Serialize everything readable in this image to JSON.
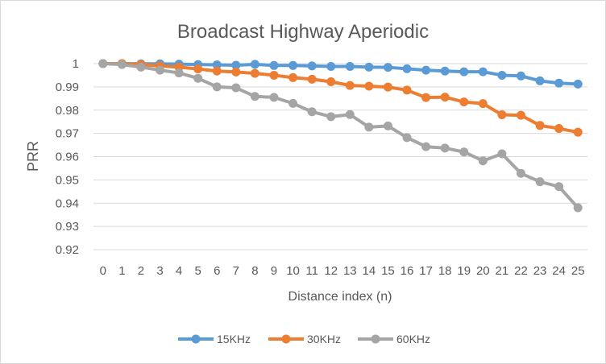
{
  "chart_data": {
    "type": "line",
    "title": "Broadcast Highway Aperiodic",
    "xlabel": "Distance index (n)",
    "ylabel": "PRR",
    "categories": [
      "0",
      "1",
      "2",
      "3",
      "4",
      "5",
      "6",
      "7",
      "8",
      "9",
      "10",
      "11",
      "12",
      "13",
      "14",
      "15",
      "16",
      "17",
      "18",
      "19",
      "20",
      "21",
      "22",
      "23",
      "24",
      "25"
    ],
    "ylim": [
      0.92,
      1.0
    ],
    "yticks": [
      "0.92",
      "0.93",
      "0.94",
      "0.95",
      "0.96",
      "0.97",
      "0.98",
      "0.99",
      "1"
    ],
    "grid": true,
    "legend_position": "bottom",
    "series": [
      {
        "name": "15KHz",
        "color": "#5b9bd5",
        "values": [
          1.0,
          1.0,
          0.9999,
          0.9999,
          0.9998,
          0.9996,
          0.9995,
          0.9993,
          0.9997,
          0.9992,
          0.9992,
          0.999,
          0.9988,
          0.9988,
          0.9985,
          0.9984,
          0.9978,
          0.9972,
          0.9968,
          0.9965,
          0.9965,
          0.995,
          0.9947,
          0.9926,
          0.9916,
          0.9912
        ]
      },
      {
        "name": "30KHz",
        "color": "#ed7d31",
        "values": [
          1.0,
          1.0,
          0.9996,
          0.999,
          0.9985,
          0.9977,
          0.9968,
          0.9964,
          0.9958,
          0.995,
          0.994,
          0.9933,
          0.9922,
          0.9906,
          0.9903,
          0.9899,
          0.9886,
          0.9854,
          0.9856,
          0.9835,
          0.9828,
          0.978,
          0.9778,
          0.9734,
          0.9721,
          0.9705
        ]
      },
      {
        "name": "60KHz",
        "color": "#a5a5a5",
        "values": [
          1.0,
          0.9996,
          0.9985,
          0.9972,
          0.996,
          0.9937,
          0.99,
          0.9896,
          0.9859,
          0.9855,
          0.9829,
          0.9793,
          0.9772,
          0.9781,
          0.9727,
          0.9732,
          0.9682,
          0.9643,
          0.9637,
          0.962,
          0.9582,
          0.9612,
          0.9528,
          0.9492,
          0.9471,
          0.938
        ]
      }
    ]
  }
}
